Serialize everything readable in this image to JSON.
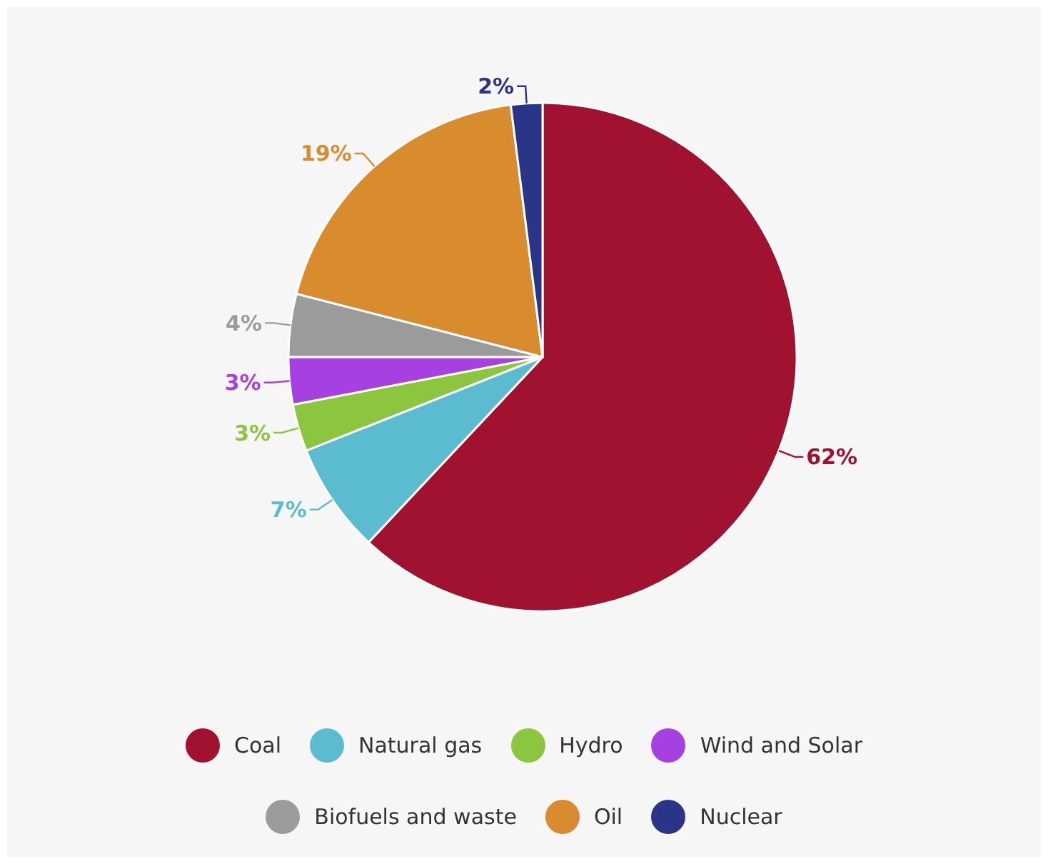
{
  "chart_data": {
    "type": "pie",
    "categories": [
      "Coal",
      "Natural gas",
      "Hydro",
      "Wind and Solar",
      "Biofuels and waste",
      "Oil",
      "Nuclear"
    ],
    "values": [
      62,
      7,
      3,
      3,
      4,
      19,
      2
    ],
    "colors": [
      "#a01230",
      "#5bbcd0",
      "#8cc63f",
      "#a640e0",
      "#9b9b9b",
      "#d98c2e",
      "#2b3588"
    ],
    "value_labels": [
      "62%",
      "7%",
      "3%",
      "3%",
      "4%",
      "19%",
      "2%"
    ],
    "legend": "bottom"
  }
}
